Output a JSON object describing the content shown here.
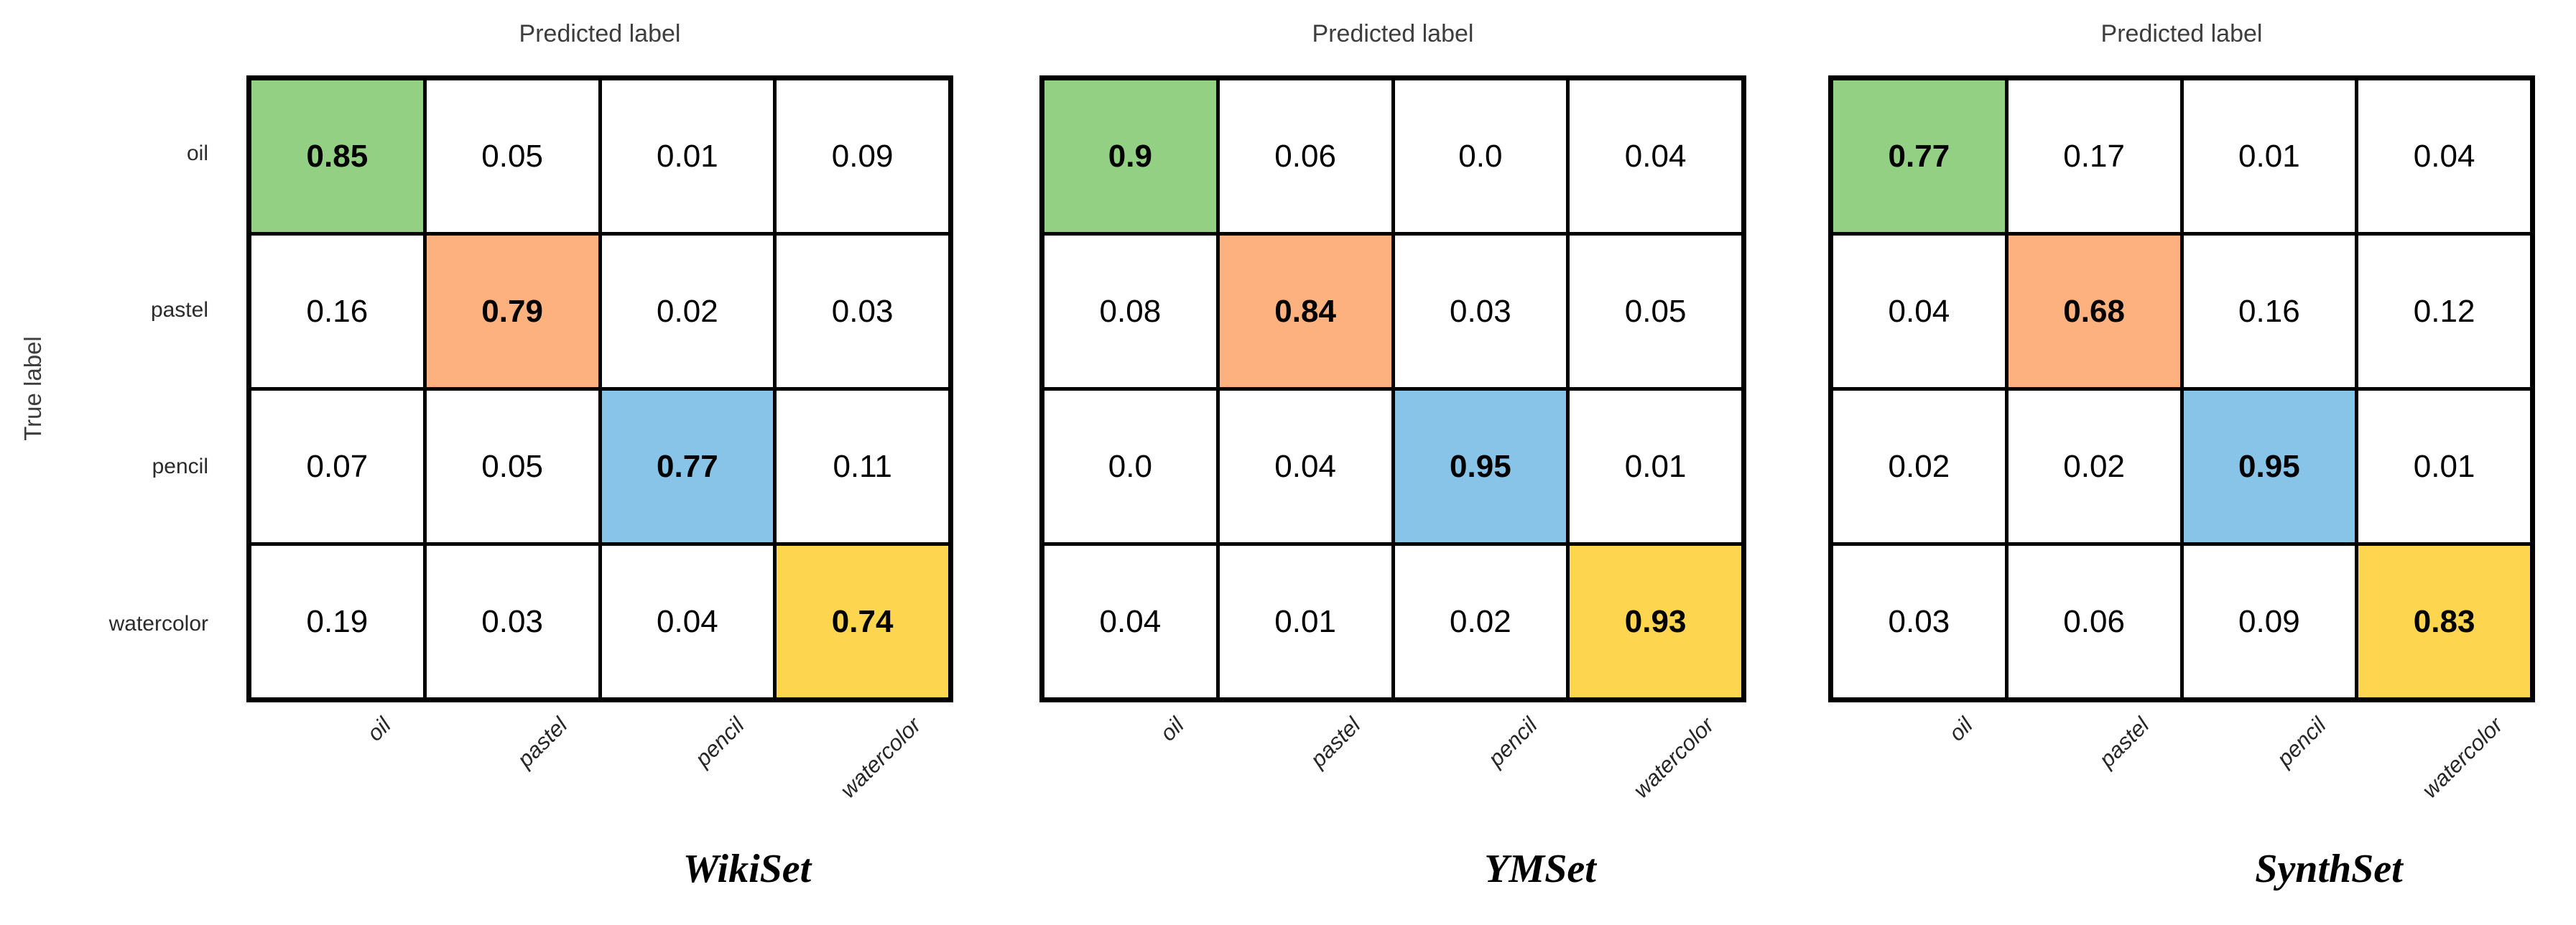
{
  "figure": {
    "background": "#ffffff",
    "grid_line_color": "#000000",
    "axis_title_color": "#3d3d3d",
    "tick_label_color": "#262626"
  },
  "colors": {
    "diagonal_oil": "#94d084",
    "diagonal_pastel": "#fcb17e",
    "diagonal_pencil": "#88c4e8",
    "diagonal_watercolor": "#fdd54e",
    "off_diagonal": "#ffffff"
  },
  "chart_data": [
    {
      "type": "heatmap",
      "title": "WikiSet",
      "xlabel": "Predicted label",
      "ylabel": "True label",
      "x_categories": [
        "oil",
        "pastel",
        "pencil",
        "watercolor"
      ],
      "y_categories": [
        "oil",
        "pastel",
        "pencil",
        "watercolor"
      ],
      "values": [
        [
          0.85,
          0.05,
          0.01,
          0.09
        ],
        [
          0.16,
          0.79,
          0.02,
          0.03
        ],
        [
          0.07,
          0.05,
          0.77,
          0.11
        ],
        [
          0.19,
          0.03,
          0.04,
          0.74
        ]
      ],
      "display": [
        [
          "0.85",
          "0.05",
          "0.01",
          "0.09"
        ],
        [
          "0.16",
          "0.79",
          "0.02",
          "0.03"
        ],
        [
          "0.07",
          "0.05",
          "0.77",
          "0.11"
        ],
        [
          "0.19",
          "0.03",
          "0.04",
          "0.74"
        ]
      ],
      "diagonal_cell_colors": [
        "#94d084",
        "#fcb17e",
        "#88c4e8",
        "#fdd54e"
      ]
    },
    {
      "type": "heatmap",
      "title": "YMSet",
      "xlabel": "Predicted label",
      "x_categories": [
        "oil",
        "pastel",
        "pencil",
        "watercolor"
      ],
      "values": [
        [
          0.9,
          0.06,
          0.0,
          0.04
        ],
        [
          0.08,
          0.84,
          0.03,
          0.05
        ],
        [
          0.0,
          0.04,
          0.95,
          0.01
        ],
        [
          0.04,
          0.01,
          0.02,
          0.93
        ]
      ],
      "display": [
        [
          "0.9",
          "0.06",
          "0.0",
          "0.04"
        ],
        [
          "0.08",
          "0.84",
          "0.03",
          "0.05"
        ],
        [
          "0.0",
          "0.04",
          "0.95",
          "0.01"
        ],
        [
          "0.04",
          "0.01",
          "0.02",
          "0.93"
        ]
      ],
      "diagonal_cell_colors": [
        "#94d084",
        "#fcb17e",
        "#88c4e8",
        "#fdd54e"
      ]
    },
    {
      "type": "heatmap",
      "title": "SynthSet",
      "xlabel": "Predicted label",
      "x_categories": [
        "oil",
        "pastel",
        "pencil",
        "watercolor"
      ],
      "values": [
        [
          0.77,
          0.17,
          0.01,
          0.04
        ],
        [
          0.04,
          0.68,
          0.16,
          0.12
        ],
        [
          0.02,
          0.02,
          0.95,
          0.01
        ],
        [
          0.03,
          0.06,
          0.09,
          0.83
        ]
      ],
      "display": [
        [
          "0.77",
          "0.17",
          "0.01",
          "0.04"
        ],
        [
          "0.04",
          "0.68",
          "0.16",
          "0.12"
        ],
        [
          "0.02",
          "0.02",
          "0.95",
          "0.01"
        ],
        [
          "0.03",
          "0.06",
          "0.09",
          "0.83"
        ]
      ],
      "diagonal_cell_colors": [
        "#94d084",
        "#fcb17e",
        "#88c4e8",
        "#fdd54e"
      ]
    }
  ]
}
